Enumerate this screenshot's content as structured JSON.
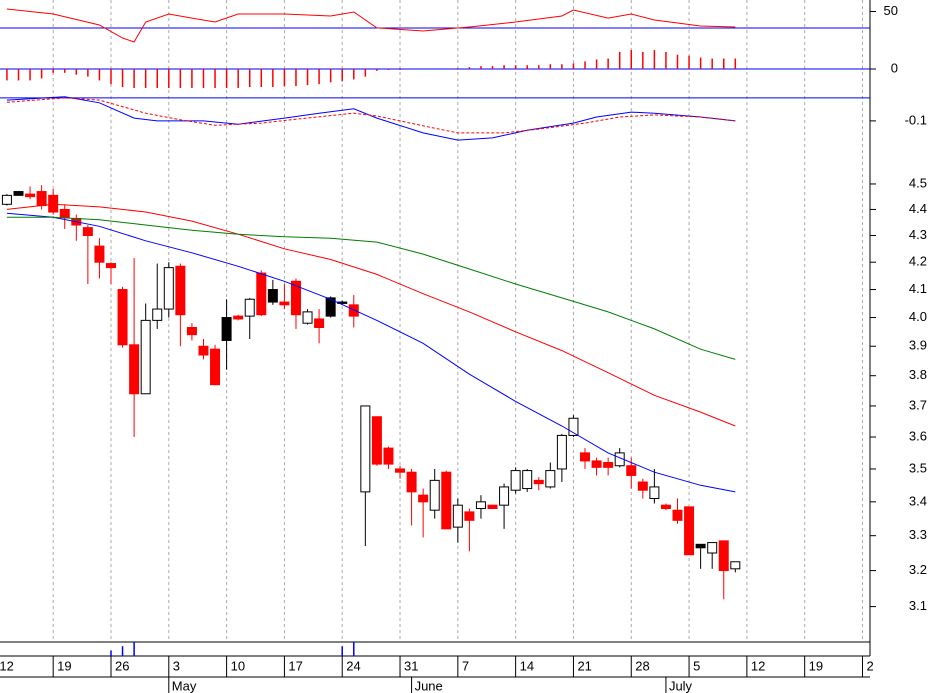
{
  "chart_data": [
    {
      "type": "line",
      "ylim": [
        20,
        60
      ],
      "yticks": [
        50
      ],
      "reference": 35.7,
      "reference_color": "#0000ff",
      "series": [
        {
          "color": "#ff0000",
          "x": [
            0,
            4,
            8,
            10,
            11,
            12,
            14,
            16,
            18,
            20,
            24,
            28,
            30,
            32,
            36,
            40,
            44,
            48,
            49,
            52,
            54,
            56,
            60,
            63
          ],
          "values": [
            52.2,
            47.8,
            38.3,
            27.0,
            23.5,
            40.9,
            47.8,
            44.3,
            40.9,
            47.8,
            47.8,
            46.1,
            49.6,
            35.7,
            33.0,
            36.5,
            40.9,
            46.1,
            51.3,
            44.3,
            47.8,
            42.6,
            37.4,
            36.5
          ]
        }
      ]
    },
    {
      "type": "bar",
      "ylim": [
        -1,
        1
      ],
      "yticks": [
        0
      ],
      "reference": 0,
      "reference_color": "#0000ff",
      "color": "#ff0000",
      "values": [
        -0.6,
        -0.6,
        -0.6,
        -0.5,
        -0.2,
        -0.2,
        -0.3,
        -0.4,
        -0.6,
        -0.8,
        -0.95,
        -1.0,
        -1.0,
        -1.0,
        -1.0,
        -1.0,
        -1.0,
        -1.0,
        -1.0,
        -1.0,
        -1.0,
        -0.95,
        -0.95,
        -0.95,
        -0.9,
        -0.9,
        -0.85,
        -0.8,
        -0.7,
        -0.65,
        -0.55,
        -0.4,
        -0.1,
        -0.05,
        -0.05,
        0,
        0,
        0,
        0,
        0.05,
        0.1,
        0.15,
        0.15,
        0.2,
        0.2,
        0.2,
        0.2,
        0.25,
        0.25,
        0.3,
        0.4,
        0.5,
        0.55,
        0.9,
        1.0,
        0.9,
        1.0,
        0.9,
        0.75,
        0.7,
        0.6,
        0.55,
        0.55,
        0.55
      ]
    },
    {
      "type": "line",
      "ylim": [
        -0.144,
        -0.04
      ],
      "yticks": [
        -0.1
      ],
      "reference": -0.058,
      "reference_color": "#0000ff",
      "series": [
        {
          "color": "#0000ff",
          "x": [
            0,
            5,
            8,
            11,
            13,
            17,
            20,
            24,
            27,
            30,
            32,
            36,
            39,
            42,
            45,
            49,
            51,
            54,
            56,
            60,
            63
          ],
          "values": [
            -0.062,
            -0.056,
            -0.067,
            -0.095,
            -0.1,
            -0.1,
            -0.106,
            -0.095,
            -0.086,
            -0.078,
            -0.095,
            -0.122,
            -0.135,
            -0.131,
            -0.117,
            -0.104,
            -0.093,
            -0.084,
            -0.086,
            -0.093,
            -0.1
          ]
        },
        {
          "color": "#ff0000",
          "dashed": true,
          "x": [
            0,
            5,
            8,
            12,
            15,
            18,
            22,
            25,
            30,
            32,
            36,
            39,
            43,
            46,
            50,
            53,
            56,
            60,
            63
          ],
          "values": [
            -0.066,
            -0.058,
            -0.062,
            -0.086,
            -0.098,
            -0.108,
            -0.104,
            -0.097,
            -0.086,
            -0.091,
            -0.109,
            -0.122,
            -0.122,
            -0.115,
            -0.104,
            -0.093,
            -0.089,
            -0.093,
            -0.1
          ]
        }
      ]
    },
    {
      "type": "candlestick",
      "log": true,
      "grid": true,
      "ylim": [
        3.01,
        4.645
      ],
      "yticks": [
        4.5,
        4.4,
        4.3,
        4.2,
        4.1,
        {
          "value": 4,
          "label": "4.0"
        },
        3.9,
        3.8,
        3.7,
        3.6,
        3.5,
        3.4,
        3.3,
        3.2,
        3.1
      ],
      "xlim": [
        -0.6,
        74.65
      ],
      "xticks": [
        {
          "value": -1,
          "label": "12"
        },
        {
          "value": 4,
          "label": "19"
        },
        {
          "value": 9,
          "label": "26"
        },
        {
          "value": 14,
          "label": "3"
        },
        {
          "value": 19,
          "label": "10"
        },
        {
          "value": 24,
          "label": "17"
        },
        {
          "value": 29,
          "label": "24"
        },
        {
          "value": 34,
          "label": "31"
        },
        {
          "value": 39,
          "label": "7"
        },
        {
          "value": 44,
          "label": "14"
        },
        {
          "value": 49,
          "label": "21"
        },
        {
          "value": 54,
          "label": "28"
        },
        {
          "value": 59,
          "label": "5"
        },
        {
          "value": 64,
          "label": "12"
        },
        {
          "value": 69,
          "label": "19"
        },
        {
          "value": 74,
          "label": "2"
        }
      ],
      "month_ticks": [
        {
          "value": 14,
          "label": "May"
        },
        {
          "value": 35,
          "label": "June"
        },
        {
          "value": 57,
          "label": "July"
        }
      ],
      "open": [
        4.42,
        4.455,
        4.46,
        4.47,
        4.455,
        4.4,
        4.365,
        4.33,
        4.26,
        4.195,
        4.1,
        3.905,
        3.74,
        3.99,
        4.03,
        4.185,
        3.965,
        3.9,
        3.89,
        3.92,
        4.005,
        4.005,
        4.16,
        4.055,
        4.055,
        4.13,
        3.98,
        3.995,
        4.005,
        4.055,
        4.045,
        3.43,
        3.665,
        3.565,
        3.5,
        3.49,
        3.42,
        3.375,
        3.49,
        3.325,
        3.37,
        3.38,
        3.39,
        3.39,
        3.435,
        3.44,
        3.465,
        3.445,
        3.5,
        3.605,
        3.55,
        3.525,
        3.52,
        3.51,
        3.51,
        3.46,
        3.41,
        3.39,
        3.375,
        3.385,
        3.265,
        3.25,
        3.285,
        3.205
      ],
      "high": [
        4.46,
        4.47,
        4.49,
        4.495,
        4.48,
        4.42,
        4.38,
        4.34,
        4.29,
        4.2,
        4.11,
        4.215,
        4.05,
        4.195,
        4.2,
        4.195,
        3.98,
        3.925,
        3.905,
        4.065,
        4.01,
        4.07,
        4.17,
        4.135,
        4.12,
        4.14,
        4.03,
        4.03,
        4.075,
        4.06,
        4.08,
        3.7,
        3.665,
        3.57,
        3.51,
        3.5,
        3.44,
        3.5,
        3.495,
        3.41,
        3.38,
        3.42,
        3.39,
        3.455,
        3.505,
        3.5,
        3.475,
        3.52,
        3.61,
        3.67,
        3.565,
        3.535,
        3.535,
        3.565,
        3.535,
        3.47,
        3.5,
        3.395,
        3.41,
        3.385,
        3.275,
        3.28,
        3.285,
        3.225
      ],
      "low": [
        4.415,
        4.455,
        4.44,
        4.4,
        4.38,
        4.325,
        4.28,
        4.12,
        4.14,
        4.12,
        3.895,
        3.6,
        3.74,
        3.96,
        4.0,
        3.9,
        3.92,
        3.855,
        3.77,
        3.82,
        3.99,
        3.925,
        4.005,
        4.045,
        4.03,
        3.96,
        3.975,
        3.91,
        4.0,
        4.045,
        3.965,
        3.27,
        3.51,
        3.5,
        3.47,
        3.33,
        3.295,
        3.35,
        3.32,
        3.28,
        3.255,
        3.35,
        3.38,
        3.32,
        3.425,
        3.43,
        3.435,
        3.44,
        3.46,
        3.6,
        3.5,
        3.48,
        3.48,
        3.505,
        3.44,
        3.41,
        3.395,
        3.375,
        3.335,
        3.245,
        3.205,
        3.205,
        3.12,
        3.195
      ],
      "close": [
        4.455,
        4.47,
        4.45,
        4.415,
        4.39,
        4.37,
        4.34,
        4.3,
        4.2,
        4.18,
        3.905,
        3.74,
        3.99,
        4.03,
        4.18,
        4.01,
        3.94,
        3.87,
        3.77,
        4.0,
        3.995,
        4.065,
        4.01,
        4.1,
        4.045,
        4.01,
        4.02,
        3.965,
        4.07,
        4.05,
        4.005,
        3.7,
        3.515,
        3.515,
        3.49,
        3.43,
        3.4,
        3.465,
        3.32,
        3.39,
        3.345,
        3.4,
        3.38,
        3.445,
        3.495,
        3.495,
        3.455,
        3.495,
        3.605,
        3.66,
        3.525,
        3.505,
        3.505,
        3.55,
        3.48,
        3.435,
        3.445,
        3.38,
        3.345,
        3.245,
        3.275,
        3.28,
        3.2,
        3.225
      ],
      "colors": [
        "#ffffff",
        "#000000",
        "#ff0000",
        "#ff0000",
        "#ff0000",
        "#ff0000",
        "#ff0000",
        "#ff0000",
        "#ff0000",
        "#ff0000",
        "#ff0000",
        "#ff0000",
        "#ffffff",
        "#ffffff",
        "#ffffff",
        "#ff0000",
        "#ff0000",
        "#ff0000",
        "#ff0000",
        "#000000",
        "#ff0000",
        "#ffffff",
        "#ff0000",
        "#000000",
        "#ff0000",
        "#ff0000",
        "#ffffff",
        "#ff0000",
        "#000000",
        "#000000",
        "#ff0000",
        "#ffffff",
        "#ff0000",
        "#ff0000",
        "#ff0000",
        "#ff0000",
        "#ff0000",
        "#ffffff",
        "#ff0000",
        "#ffffff",
        "#ff0000",
        "#ffffff",
        "#ff0000",
        "#ffffff",
        "#ffffff",
        "#ffffff",
        "#ff0000",
        "#ffffff",
        "#ffffff",
        "#ffffff",
        "#ff0000",
        "#ff0000",
        "#ff0000",
        "#ffffff",
        "#ff0000",
        "#ff0000",
        "#ffffff",
        "#ff0000",
        "#ff0000",
        "#ff0000",
        "#000000",
        "#ffffff",
        "#ff0000",
        "#ffffff"
      ],
      "series": [
        {
          "color": "#0000ff",
          "x": [
            0,
            4,
            8,
            12,
            16,
            20,
            24,
            28,
            32,
            36,
            40,
            44,
            48,
            52,
            56,
            60,
            63
          ],
          "values": [
            4.385,
            4.37,
            4.335,
            4.28,
            4.235,
            4.185,
            4.13,
            4.065,
            3.99,
            3.91,
            3.805,
            3.715,
            3.635,
            3.55,
            3.49,
            3.45,
            3.43
          ]
        },
        {
          "color": "#ff0000",
          "x": [
            0,
            4,
            8,
            12,
            16,
            20,
            24,
            28,
            32,
            36,
            40,
            44,
            48,
            52,
            56,
            60,
            63
          ],
          "values": [
            4.4,
            4.42,
            4.41,
            4.39,
            4.355,
            4.305,
            4.25,
            4.21,
            4.155,
            4.085,
            4.02,
            3.95,
            3.885,
            3.81,
            3.735,
            3.68,
            3.635
          ]
        },
        {
          "color": "#008000",
          "x": [
            0,
            4,
            8,
            12,
            16,
            20,
            24,
            28,
            32,
            36,
            40,
            44,
            48,
            52,
            56,
            60,
            63
          ],
          "values": [
            4.37,
            4.37,
            4.36,
            4.34,
            4.32,
            4.305,
            4.295,
            4.29,
            4.275,
            4.23,
            4.175,
            4.12,
            4.07,
            4.02,
            3.96,
            3.89,
            3.855
          ]
        }
      ]
    },
    {
      "type": "bar",
      "ylim": [
        0,
        1
      ],
      "yticks": [],
      "color": "#0000ff",
      "values": [
        0,
        0,
        0,
        0,
        0,
        0,
        0,
        0,
        0,
        0.4,
        0.7,
        1.0,
        0,
        0,
        0,
        0,
        0,
        0,
        0,
        0,
        0,
        0,
        0,
        0,
        0,
        0,
        0,
        0,
        0,
        0.7,
        1.0,
        0,
        0,
        0,
        0,
        0,
        0,
        0,
        0,
        0,
        0,
        0,
        0,
        0,
        0,
        0,
        0,
        0,
        0,
        0,
        0,
        0,
        0,
        0,
        0,
        0,
        0,
        0,
        0,
        0,
        0,
        0,
        0,
        0
      ]
    }
  ]
}
